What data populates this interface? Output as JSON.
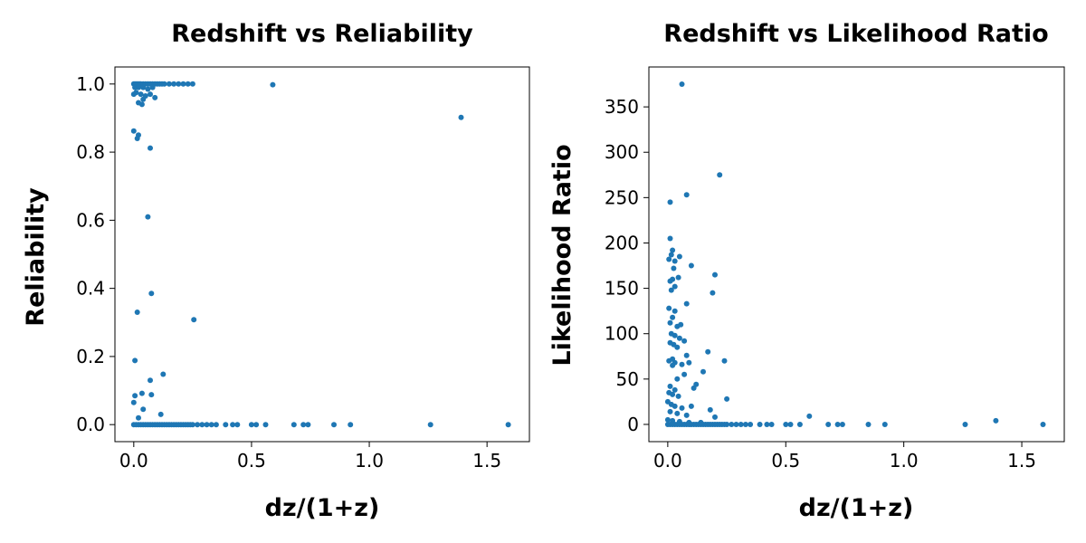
{
  "chart_data": [
    {
      "type": "scatter",
      "title": "Redshift vs Reliability",
      "xlabel": "dz/(1+z)",
      "ylabel": "Reliability",
      "xlim": [
        -0.08,
        1.68
      ],
      "ylim": [
        -0.05,
        1.05
      ],
      "xticks": [
        0.0,
        0.5,
        1.0,
        1.5
      ],
      "xtick_labels": [
        "0.0",
        "0.5",
        "1.0",
        "1.5"
      ],
      "yticks": [
        0.0,
        0.2,
        0.4,
        0.6,
        0.8,
        1.0
      ],
      "ytick_labels": [
        "0.0",
        "0.2",
        "0.4",
        "0.6",
        "0.8",
        "1.0"
      ],
      "grid": false,
      "color": "#1f77b4",
      "series": [
        {
          "name": "",
          "points": [
            [
              0.0,
              1.0
            ],
            [
              0.005,
              1.0
            ],
            [
              0.01,
              1.0
            ],
            [
              0.015,
              1.0
            ],
            [
              0.02,
              1.0
            ],
            [
              0.025,
              1.0
            ],
            [
              0.03,
              1.0
            ],
            [
              0.04,
              1.0
            ],
            [
              0.05,
              1.0
            ],
            [
              0.06,
              1.0
            ],
            [
              0.07,
              1.0
            ],
            [
              0.08,
              1.0
            ],
            [
              0.09,
              1.0
            ],
            [
              0.1,
              1.0
            ],
            [
              0.11,
              1.0
            ],
            [
              0.12,
              1.0
            ],
            [
              0.13,
              1.0
            ],
            [
              0.15,
              1.0
            ],
            [
              0.17,
              1.0
            ],
            [
              0.19,
              1.0
            ],
            [
              0.21,
              1.0
            ],
            [
              0.23,
              1.0
            ],
            [
              0.25,
              1.0
            ],
            [
              0.59,
              0.998
            ],
            [
              0.005,
              0.99
            ],
            [
              0.02,
              0.99
            ],
            [
              0.04,
              0.99
            ],
            [
              0.06,
              0.985
            ],
            [
              0.08,
              0.99
            ],
            [
              0.0,
              0.97
            ],
            [
              0.01,
              0.975
            ],
            [
              0.03,
              0.97
            ],
            [
              0.05,
              0.965
            ],
            [
              0.07,
              0.97
            ],
            [
              0.09,
              0.96
            ],
            [
              0.04,
              0.955
            ],
            [
              0.02,
              0.945
            ],
            [
              0.035,
              0.94
            ],
            [
              1.39,
              0.902
            ],
            [
              0.0,
              0.862
            ],
            [
              0.02,
              0.85
            ],
            [
              0.015,
              0.84
            ],
            [
              0.07,
              0.812
            ],
            [
              0.06,
              0.61
            ],
            [
              0.075,
              0.385
            ],
            [
              0.015,
              0.33
            ],
            [
              0.255,
              0.308
            ],
            [
              0.005,
              0.188
            ],
            [
              0.125,
              0.148
            ],
            [
              0.07,
              0.13
            ],
            [
              0.035,
              0.092
            ],
            [
              0.005,
              0.085
            ],
            [
              0.075,
              0.088
            ],
            [
              0.0,
              0.065
            ],
            [
              0.04,
              0.045
            ],
            [
              0.02,
              0.02
            ],
            [
              0.115,
              0.03
            ],
            [
              0.0,
              0.0
            ],
            [
              0.01,
              0.0
            ],
            [
              0.02,
              0.0
            ],
            [
              0.03,
              0.0
            ],
            [
              0.04,
              0.0
            ],
            [
              0.05,
              0.0
            ],
            [
              0.06,
              0.0
            ],
            [
              0.07,
              0.0
            ],
            [
              0.08,
              0.0
            ],
            [
              0.09,
              0.0
            ],
            [
              0.1,
              0.0
            ],
            [
              0.11,
              0.0
            ],
            [
              0.12,
              0.0
            ],
            [
              0.13,
              0.0
            ],
            [
              0.14,
              0.0
            ],
            [
              0.15,
              0.0
            ],
            [
              0.16,
              0.0
            ],
            [
              0.17,
              0.0
            ],
            [
              0.18,
              0.0
            ],
            [
              0.19,
              0.0
            ],
            [
              0.2,
              0.0
            ],
            [
              0.21,
              0.0
            ],
            [
              0.22,
              0.0
            ],
            [
              0.23,
              0.0
            ],
            [
              0.24,
              0.0
            ],
            [
              0.25,
              0.0
            ],
            [
              0.27,
              0.0
            ],
            [
              0.29,
              0.0
            ],
            [
              0.31,
              0.0
            ],
            [
              0.33,
              0.0
            ],
            [
              0.35,
              0.0
            ],
            [
              0.39,
              0.0
            ],
            [
              0.42,
              0.0
            ],
            [
              0.44,
              0.0
            ],
            [
              0.5,
              0.0
            ],
            [
              0.52,
              0.0
            ],
            [
              0.56,
              0.0
            ],
            [
              0.68,
              0.0
            ],
            [
              0.72,
              0.0
            ],
            [
              0.74,
              0.0
            ],
            [
              0.85,
              0.0
            ],
            [
              0.92,
              0.0
            ],
            [
              1.26,
              0.0
            ],
            [
              1.59,
              0.0
            ]
          ]
        }
      ]
    },
    {
      "type": "scatter",
      "title": "Redshift vs Likelihood Ratio",
      "xlabel": "dz/(1+z)",
      "ylabel": "Likelihood Ratio",
      "xlim": [
        -0.08,
        1.68
      ],
      "ylim": [
        -19,
        394
      ],
      "xticks": [
        0.0,
        0.5,
        1.0,
        1.5
      ],
      "xtick_labels": [
        "0.0",
        "0.5",
        "1.0",
        "1.5"
      ],
      "yticks": [
        0,
        50,
        100,
        150,
        200,
        250,
        300,
        350
      ],
      "ytick_labels": [
        "0",
        "50",
        "100",
        "150",
        "200",
        "250",
        "300",
        "350"
      ],
      "grid": false,
      "color": "#1f77b4",
      "series": [
        {
          "name": "",
          "points": [
            [
              0.06,
              375
            ],
            [
              0.22,
              275
            ],
            [
              0.08,
              253
            ],
            [
              0.01,
              245
            ],
            [
              0.01,
              205
            ],
            [
              0.02,
              192
            ],
            [
              0.015,
              187
            ],
            [
              0.005,
              182
            ],
            [
              0.03,
              180
            ],
            [
              0.05,
              185
            ],
            [
              0.1,
              175
            ],
            [
              0.025,
              172
            ],
            [
              0.2,
              165
            ],
            [
              0.02,
              160
            ],
            [
              0.01,
              158
            ],
            [
              0.045,
              162
            ],
            [
              0.03,
              152
            ],
            [
              0.015,
              148
            ],
            [
              0.19,
              145
            ],
            [
              0.08,
              133
            ],
            [
              0.005,
              128
            ],
            [
              0.03,
              125
            ],
            [
              0.02,
              118
            ],
            [
              0.01,
              112
            ],
            [
              0.04,
              108
            ],
            [
              0.055,
              110
            ],
            [
              0.015,
              100
            ],
            [
              0.03,
              98
            ],
            [
              0.05,
              95
            ],
            [
              0.01,
              90
            ],
            [
              0.07,
              92
            ],
            [
              0.025,
              88
            ],
            [
              0.04,
              85
            ],
            [
              0.17,
              80
            ],
            [
              0.08,
              76
            ],
            [
              0.02,
              72
            ],
            [
              0.005,
              70
            ],
            [
              0.24,
              70
            ],
            [
              0.03,
              68
            ],
            [
              0.06,
              66
            ],
            [
              0.09,
              68
            ],
            [
              0.02,
              65
            ],
            [
              0.15,
              58
            ],
            [
              0.07,
              55
            ],
            [
              0.04,
              50
            ],
            [
              0.12,
              44
            ],
            [
              0.01,
              42
            ],
            [
              0.11,
              40
            ],
            [
              0.03,
              38
            ],
            [
              0.005,
              35
            ],
            [
              0.02,
              33
            ],
            [
              0.045,
              31
            ],
            [
              0.25,
              28
            ],
            [
              0.0,
              25
            ],
            [
              0.015,
              22
            ],
            [
              0.03,
              20
            ],
            [
              0.1,
              20
            ],
            [
              0.06,
              18
            ],
            [
              0.18,
              16
            ],
            [
              0.01,
              14
            ],
            [
              0.04,
              12
            ],
            [
              0.08,
              10
            ],
            [
              0.2,
              8
            ],
            [
              0.6,
              9
            ],
            [
              0.0,
              5
            ],
            [
              0.02,
              4
            ],
            [
              0.05,
              3
            ],
            [
              0.09,
              2
            ],
            [
              0.14,
              2
            ],
            [
              1.39,
              4
            ],
            [
              0.0,
              0
            ],
            [
              0.01,
              0
            ],
            [
              0.02,
              0
            ],
            [
              0.03,
              0
            ],
            [
              0.04,
              0
            ],
            [
              0.05,
              0
            ],
            [
              0.06,
              0
            ],
            [
              0.07,
              0
            ],
            [
              0.08,
              0
            ],
            [
              0.09,
              0
            ],
            [
              0.1,
              0
            ],
            [
              0.11,
              0
            ],
            [
              0.12,
              0
            ],
            [
              0.13,
              0
            ],
            [
              0.14,
              0
            ],
            [
              0.15,
              0
            ],
            [
              0.16,
              0
            ],
            [
              0.17,
              0
            ],
            [
              0.18,
              0
            ],
            [
              0.19,
              0
            ],
            [
              0.2,
              0
            ],
            [
              0.21,
              0
            ],
            [
              0.22,
              0
            ],
            [
              0.23,
              0
            ],
            [
              0.24,
              0
            ],
            [
              0.25,
              0
            ],
            [
              0.27,
              0
            ],
            [
              0.29,
              0
            ],
            [
              0.31,
              0
            ],
            [
              0.33,
              0
            ],
            [
              0.35,
              0
            ],
            [
              0.39,
              0
            ],
            [
              0.42,
              0
            ],
            [
              0.44,
              0
            ],
            [
              0.5,
              0
            ],
            [
              0.52,
              0
            ],
            [
              0.56,
              0
            ],
            [
              0.68,
              0
            ],
            [
              0.72,
              0
            ],
            [
              0.74,
              0
            ],
            [
              0.85,
              0
            ],
            [
              0.92,
              0
            ],
            [
              1.26,
              0
            ],
            [
              1.59,
              0
            ]
          ]
        }
      ]
    }
  ]
}
